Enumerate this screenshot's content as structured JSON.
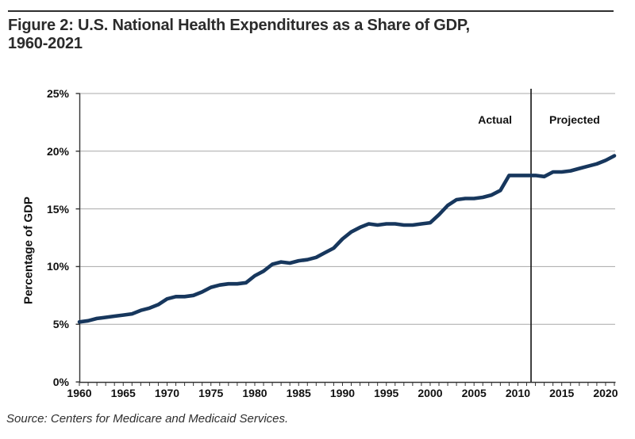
{
  "figure": {
    "title_line1": "Figure 2: U.S. National Health Expenditures as a Share of GDP,",
    "title_line2": "1960-2021",
    "source": "Source: Centers for Medicare and Medicaid Services."
  },
  "chart_data": {
    "type": "line",
    "title": "Figure 2: U.S. National Health Expenditures as a Share of GDP, 1960-2021",
    "xlabel": "",
    "ylabel": "Percentage of GDP",
    "xlim": [
      1960,
      2021
    ],
    "ylim": [
      0,
      25
    ],
    "grid": "horizontal",
    "legend": "none",
    "yticks": [
      {
        "v": 0,
        "label": "0%"
      },
      {
        "v": 5,
        "label": "5%"
      },
      {
        "v": 10,
        "label": "10%"
      },
      {
        "v": 15,
        "label": "15%"
      },
      {
        "v": 20,
        "label": "20%"
      },
      {
        "v": 25,
        "label": "25%"
      }
    ],
    "xticks": [
      {
        "v": 1960,
        "label": "1960"
      },
      {
        "v": 1965,
        "label": "1965"
      },
      {
        "v": 1970,
        "label": "1970"
      },
      {
        "v": 1975,
        "label": "1975"
      },
      {
        "v": 1980,
        "label": "1980"
      },
      {
        "v": 1985,
        "label": "1985"
      },
      {
        "v": 1990,
        "label": "1990"
      },
      {
        "v": 1995,
        "label": "1995"
      },
      {
        "v": 2000,
        "label": "2000"
      },
      {
        "v": 2005,
        "label": "2005"
      },
      {
        "v": 2010,
        "label": "2010"
      },
      {
        "v": 2015,
        "label": "2015"
      },
      {
        "v": 2020,
        "label": "2020"
      }
    ],
    "annotations": {
      "actual": "Actual",
      "projected": "Projected"
    },
    "divider_year": 2011.5,
    "colors": {
      "line": "#17375D",
      "grid": "#a8a8a8",
      "axis": "#333333",
      "divider": "#111111"
    },
    "series": [
      {
        "name": "National health expenditures as a share of GDP",
        "x": [
          1960,
          1961,
          1962,
          1963,
          1964,
          1965,
          1966,
          1967,
          1968,
          1969,
          1970,
          1971,
          1972,
          1973,
          1974,
          1975,
          1976,
          1977,
          1978,
          1979,
          1980,
          1981,
          1982,
          1983,
          1984,
          1985,
          1986,
          1987,
          1988,
          1989,
          1990,
          1991,
          1992,
          1993,
          1994,
          1995,
          1996,
          1997,
          1998,
          1999,
          2000,
          2001,
          2002,
          2003,
          2004,
          2005,
          2006,
          2007,
          2008,
          2009,
          2010,
          2011,
          2012,
          2013,
          2014,
          2015,
          2016,
          2017,
          2018,
          2019,
          2020,
          2021
        ],
        "y": [
          5.2,
          5.3,
          5.5,
          5.6,
          5.7,
          5.8,
          5.9,
          6.2,
          6.4,
          6.7,
          7.2,
          7.4,
          7.4,
          7.5,
          7.8,
          8.2,
          8.4,
          8.5,
          8.5,
          8.6,
          9.2,
          9.6,
          10.2,
          10.4,
          10.3,
          10.5,
          10.6,
          10.8,
          11.2,
          11.6,
          12.4,
          13.0,
          13.4,
          13.7,
          13.6,
          13.7,
          13.7,
          13.6,
          13.6,
          13.7,
          13.8,
          14.5,
          15.3,
          15.8,
          15.9,
          15.9,
          16.0,
          16.2,
          16.6,
          17.9,
          17.9,
          17.9,
          17.9,
          17.8,
          18.2,
          18.2,
          18.3,
          18.5,
          18.7,
          18.9,
          19.2,
          19.6
        ]
      }
    ]
  }
}
